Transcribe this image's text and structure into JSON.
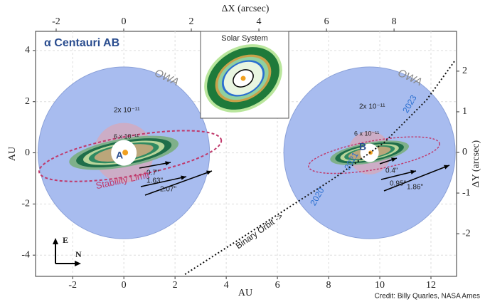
{
  "chart_data": {
    "type": "scatter",
    "title": "α Centauri AB",
    "x_label": "AU",
    "y_label": "AU",
    "x2_label": "ΔX (arcsec)",
    "y2_label": "ΔY (arcsec)",
    "xlim": [
      -3.45,
      13
    ],
    "xticks": [
      -2,
      0,
      2,
      4,
      6,
      8,
      10,
      12
    ],
    "ylim": [
      -4.83,
      4.75
    ],
    "yticks": [
      -4,
      -2,
      0,
      2,
      4
    ],
    "x2lim": [
      -2.61,
      9.85
    ],
    "x2ticks": [
      -2,
      0,
      2,
      4,
      6,
      8
    ],
    "y2lim": [
      -3.05,
      2.98
    ],
    "y2ticks": [
      -2,
      -1,
      0,
      1,
      2
    ],
    "grid": true,
    "discs": [
      {
        "x": 0,
        "y": 0,
        "r": 3.35,
        "color": "#a8bcef"
      },
      {
        "x": 9.6,
        "y": 0,
        "r": 3.35,
        "color": "#a8bcef"
      }
    ],
    "series": [
      {
        "name": "Binary Orbit ->",
        "color": "#111111",
        "x": [
          2.39,
          4.33,
          6.28,
          8.22,
          10.17,
          11.83,
          12.94
        ],
        "values": [
          -4.75,
          -3.5,
          -2.24,
          -0.99,
          0.4,
          2.07,
          3.61
        ]
      }
    ],
    "annotations": {
      "owa": "OWA",
      "contrast_outer": "2x 10⁻¹¹",
      "contrast_inner": "6 x 10⁻¹¹",
      "stability": "Stability Limit",
      "star_a": "A",
      "star_b": "B",
      "a_sep": [
        "0.7\"",
        "1.63\"",
        "2.07\""
      ],
      "b_sep": [
        "0.4\"",
        "0.95\"",
        "1.86\""
      ],
      "years": [
        "2020",
        "2021",
        "2023"
      ],
      "inset_title": "Solar System",
      "east": "E",
      "north": "N",
      "credit": "Credit: Billy Quarles, NASA Ames"
    }
  }
}
